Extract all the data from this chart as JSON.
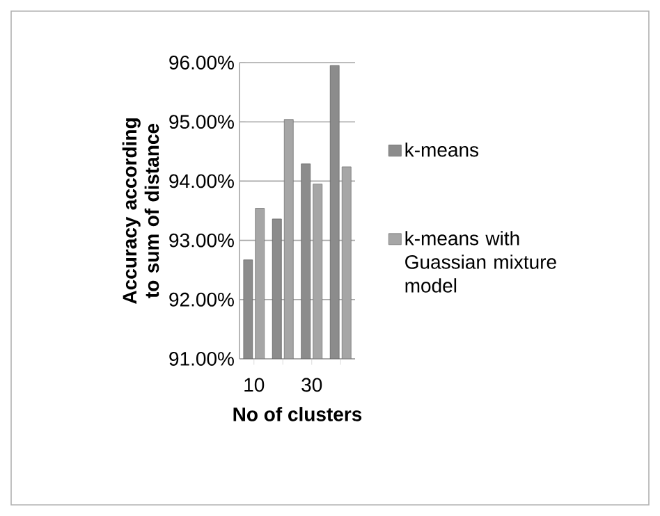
{
  "chart_data": {
    "type": "bar",
    "xlabel": "No of clusters",
    "ylabel": "Accuracy according to sum of distance",
    "categories": [
      "10",
      null,
      "30",
      null
    ],
    "series": [
      {
        "name": "k-means",
        "color": "#8c8c8c",
        "values": [
          92.67,
          93.36,
          94.29,
          95.95
        ]
      },
      {
        "name": "k-means with Guassian mixture model",
        "color": "#a6a6a6",
        "values": [
          93.54,
          95.04,
          93.95,
          94.24
        ]
      }
    ],
    "ylim": [
      91,
      96
    ],
    "yticks": [
      {
        "value": 91,
        "label": "91.00%"
      },
      {
        "value": 92,
        "label": "92.00%"
      },
      {
        "value": 93,
        "label": "93.00%"
      },
      {
        "value": 94,
        "label": "94.00%"
      },
      {
        "value": 95,
        "label": "95.00%"
      },
      {
        "value": 96,
        "label": "96.00%"
      }
    ],
    "grid": "y",
    "legend": "right"
  }
}
